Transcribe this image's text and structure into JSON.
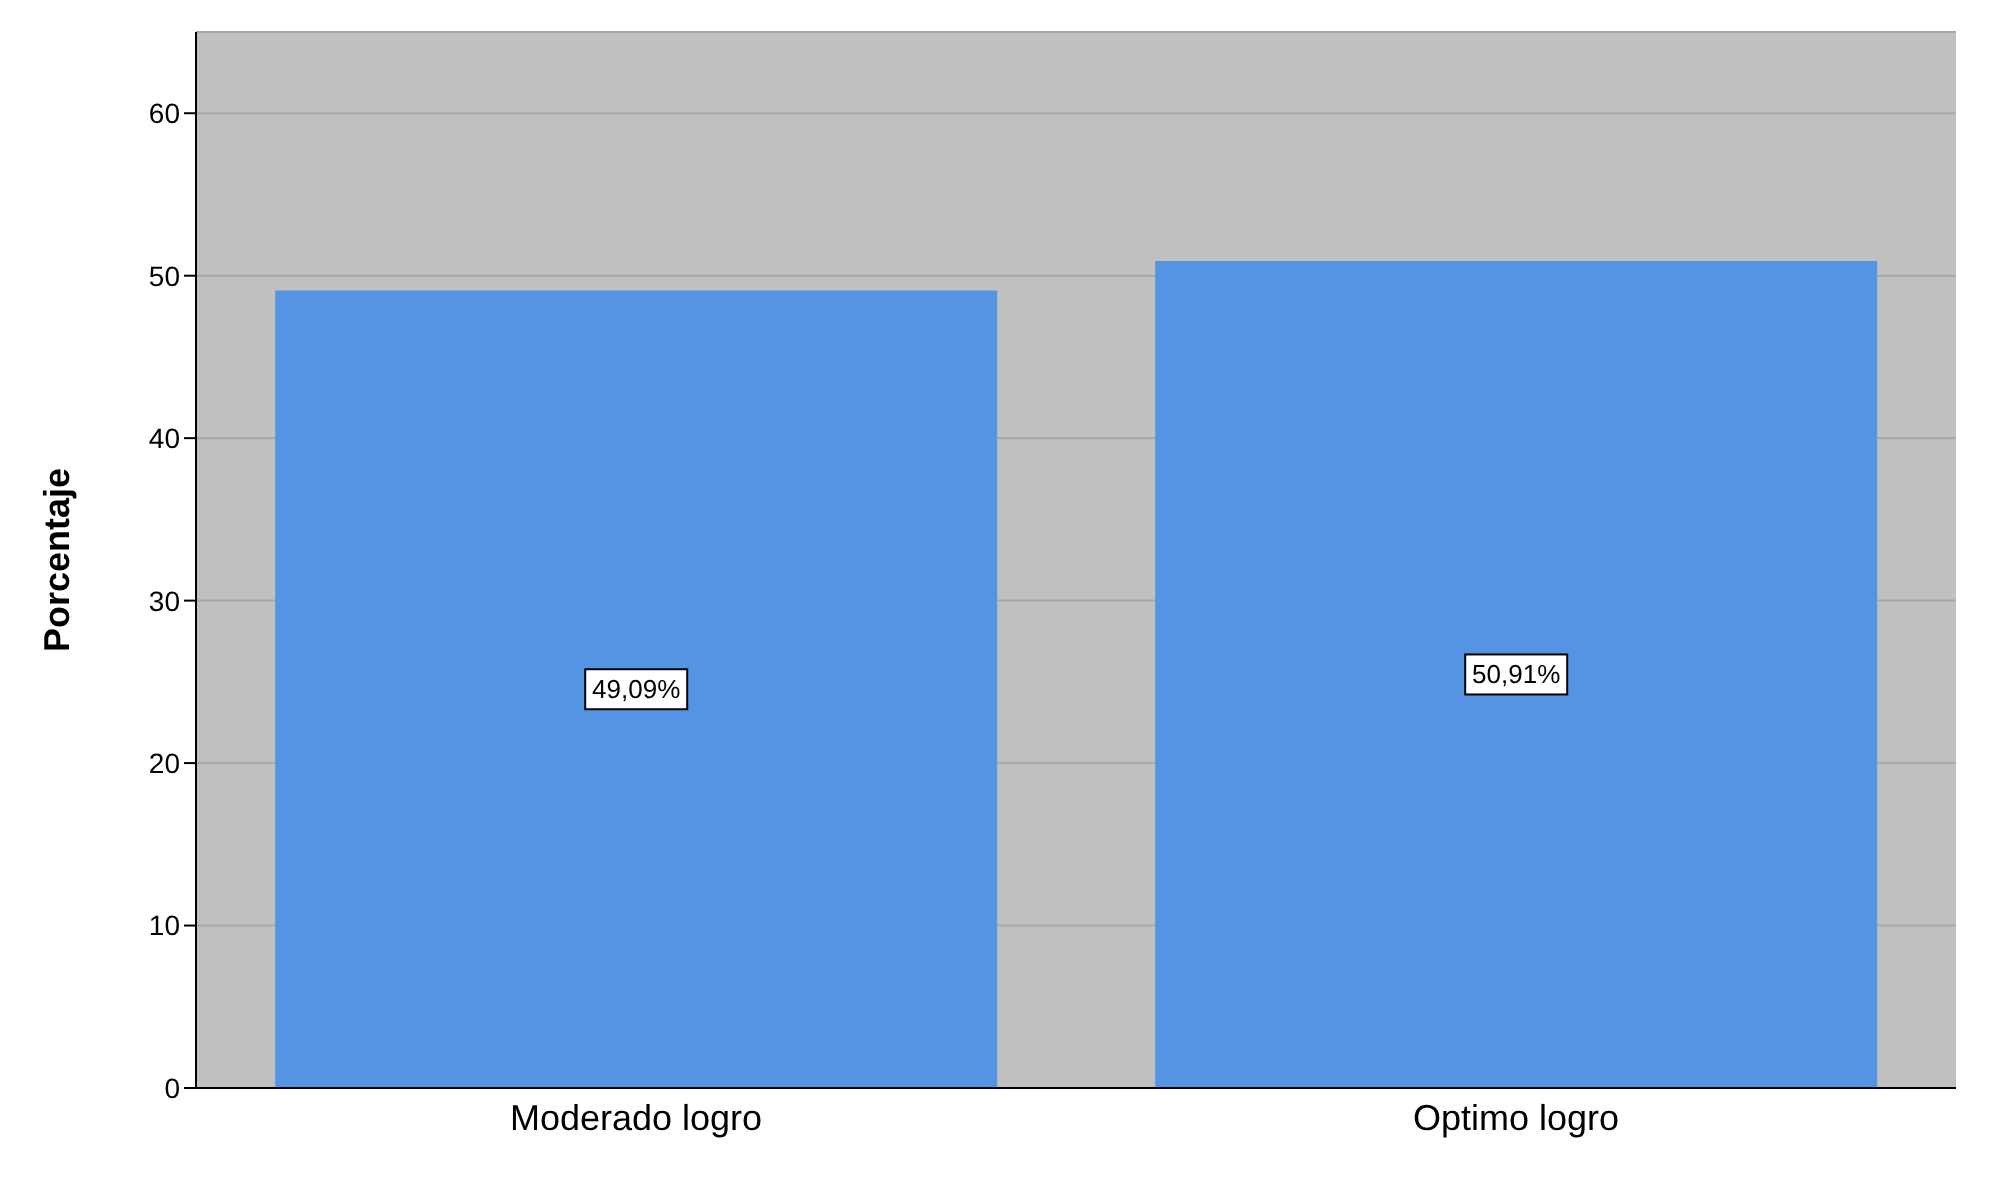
{
  "chart_data": {
    "type": "bar",
    "ylabel": "Porcentaje",
    "categories": [
      "Moderado logro",
      "Optimo logro"
    ],
    "series": [
      {
        "color": "#5494e2",
        "values": [
          49.09,
          50.91
        ],
        "value_labels": [
          "49,09%",
          "50,91%"
        ]
      }
    ],
    "ylim": [
      0,
      65
    ],
    "yticks": [
      0,
      10,
      20,
      30,
      40,
      50,
      60
    ],
    "grid": "y",
    "legend": false
  }
}
